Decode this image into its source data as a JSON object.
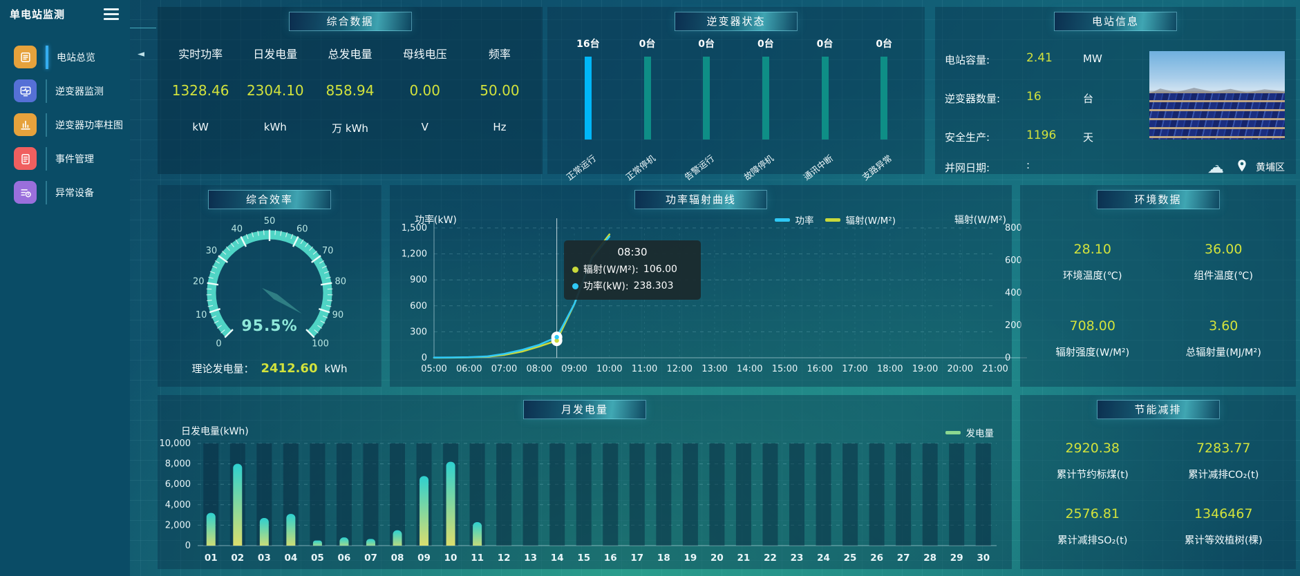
{
  "app": {
    "title": "单电站监测"
  },
  "sidebar": {
    "items": [
      {
        "label": "电站总览",
        "icon": "station-overview-icon",
        "icon_color": "#e6a23c",
        "active": true
      },
      {
        "label": "逆变器监测",
        "icon": "inverter-monitor-icon",
        "icon_color": "#5570d6",
        "active": false
      },
      {
        "label": "逆变器功率柱图",
        "icon": "inverter-power-bars-icon",
        "icon_color": "#e6a23c",
        "active": false
      },
      {
        "label": "事件管理",
        "icon": "event-management-icon",
        "icon_color": "#f05f5f",
        "active": false
      },
      {
        "label": "异常设备",
        "icon": "abnormal-device-icon",
        "icon_color": "#9a6fdc",
        "active": false
      }
    ]
  },
  "panels": {
    "summary": {
      "title": "综合数据",
      "metrics": [
        {
          "label": "实时功率",
          "value": "1328.46",
          "unit": "kW"
        },
        {
          "label": "日发电量",
          "value": "2304.10",
          "unit": "kWh"
        },
        {
          "label": "总发电量",
          "value": "858.94",
          "unit": "万  kWh"
        },
        {
          "label": "母线电压",
          "value": "0.00",
          "unit": "V"
        },
        {
          "label": "频率",
          "value": "50.00",
          "unit": "Hz"
        }
      ]
    },
    "inverter_status": {
      "title": "逆变器状态",
      "items": [
        {
          "count": "16台",
          "label": "正常运行",
          "highlight": true
        },
        {
          "count": "0台",
          "label": "正常停机",
          "highlight": false
        },
        {
          "count": "0台",
          "label": "告警运行",
          "highlight": false
        },
        {
          "count": "0台",
          "label": "故障停机",
          "highlight": false
        },
        {
          "count": "0台",
          "label": "通讯中断",
          "highlight": false
        },
        {
          "count": "0台",
          "label": "支路异常",
          "highlight": false
        }
      ]
    },
    "station_info": {
      "title": "电站信息",
      "rows": [
        {
          "label": "电站容量:",
          "value": "2.41",
          "unit": "MW"
        },
        {
          "label": "逆变器数量:",
          "value": "16",
          "unit": "台"
        },
        {
          "label": "安全生产:",
          "value": "1196",
          "unit": "天"
        },
        {
          "label": "并网日期:",
          "value": ":",
          "unit": ""
        }
      ],
      "weather_icon_mark": "?",
      "location": "黄埔区"
    },
    "efficiency": {
      "title": "综合效率",
      "gauge_label": "95.5%",
      "footer_label": "理论发电量：",
      "footer_value": "2412.60",
      "footer_unit": "kWh"
    },
    "power_radiation": {
      "title": "功率辐射曲线"
    },
    "environment": {
      "title": "环境数据",
      "metrics": [
        {
          "value": "28.10",
          "label": "环境温度(℃)"
        },
        {
          "value": "36.00",
          "label": "组件温度(℃)"
        },
        {
          "value": "708.00",
          "label": "辐射强度(W/M²)"
        },
        {
          "value": "3.60",
          "label": "总辐射量(MJ/M²)"
        }
      ]
    },
    "monthly_energy": {
      "title": "月发电量"
    },
    "saving": {
      "title": "节能减排",
      "metrics": [
        {
          "value": "2920.38",
          "label": "累计节约标煤(t)"
        },
        {
          "value": "7283.77",
          "label": "累计减排CO₂(t)"
        },
        {
          "value": "2576.81",
          "label": "累计减排SO₂(t)"
        },
        {
          "value": "1346467",
          "label": "累计等效植树(棵)"
        }
      ]
    }
  },
  "colors": {
    "value_accent": "#d2e23c",
    "inverter_bar_active": "#00b7f8",
    "inverter_bar_idle": "#0e8e86",
    "power_line": "#2fc8f5",
    "radiation_line": "#c9d93b",
    "gauge_ring": "#4fd4c5",
    "energy_bar_top": "#2ed0cf",
    "energy_bar_bottom": "#e6df67",
    "energy_legend": "#8cd790"
  },
  "chart_data": [
    {
      "id": "power_radiation_curve",
      "type": "line",
      "title": "功率辐射曲线",
      "ylabel_left": "功率(kW)",
      "ylabel_right": "辐射(W/M²)",
      "legend": [
        {
          "name": "功率",
          "color": "#2fc8f5"
        },
        {
          "name": "辐射(W/M²)",
          "color": "#c9d93b"
        }
      ],
      "x_ticks": [
        "05:00",
        "06:00",
        "07:00",
        "08:00",
        "09:00",
        "10:00",
        "11:00",
        "12:00",
        "13:00",
        "14:00",
        "15:00",
        "16:00",
        "17:00",
        "18:00",
        "19:00",
        "20:00",
        "21:00"
      ],
      "ylim_left": [
        0,
        1500
      ],
      "yticks_left": [
        "0",
        "300",
        "600",
        "900",
        "1,200",
        "1,500"
      ],
      "ylim_right": [
        0,
        800
      ],
      "yticks_right": [
        "0",
        "200",
        "400",
        "600",
        "800"
      ],
      "series": [
        {
          "name": "功率",
          "axis": "left",
          "color": "#2fc8f5",
          "x": [
            "05:00",
            "05:30",
            "06:00",
            "06:30",
            "07:00",
            "07:30",
            "08:00",
            "08:30",
            "09:00",
            "09:30",
            "10:00"
          ],
          "y": [
            2,
            3,
            6,
            15,
            45,
            90,
            150,
            238.303,
            620,
            1150,
            1400
          ]
        },
        {
          "name": "辐射(W/M²)",
          "axis": "right",
          "color": "#c9d93b",
          "x": [
            "05:00",
            "05:30",
            "06:00",
            "06:30",
            "07:00",
            "07:30",
            "08:00",
            "08:30",
            "09:00",
            "09:30",
            "10:00"
          ],
          "y": [
            0,
            1,
            2,
            6,
            18,
            38,
            70,
            106,
            330,
            620,
            760
          ]
        }
      ],
      "tooltip": {
        "time": "08:30",
        "rows": [
          {
            "name": "辐射(W/M²):",
            "value": "106.00",
            "color": "#c9d93b"
          },
          {
            "name": "功率(kW):",
            "value": "238.303",
            "color": "#2fc8f5"
          }
        ]
      }
    },
    {
      "id": "monthly_energy",
      "type": "bar",
      "title": "月发电量",
      "ylabel": "日发电量(kWh)",
      "legend": "发电量",
      "legend_color": "#8cd790",
      "categories": [
        "01",
        "02",
        "03",
        "04",
        "05",
        "06",
        "07",
        "08",
        "09",
        "10",
        "11",
        "12",
        "13",
        "14",
        "15",
        "16",
        "17",
        "18",
        "19",
        "20",
        "21",
        "22",
        "23",
        "24",
        "25",
        "26",
        "27",
        "28",
        "29",
        "30"
      ],
      "values": [
        3200,
        8000,
        2700,
        3100,
        500,
        800,
        650,
        1500,
        6800,
        8200,
        2300,
        0,
        0,
        0,
        0,
        0,
        0,
        0,
        0,
        0,
        0,
        0,
        0,
        0,
        0,
        0,
        0,
        0,
        0,
        0
      ],
      "ylim": [
        0,
        10000
      ],
      "yticks": [
        "0",
        "2,000",
        "4,000",
        "6,000",
        "8,000",
        "10,000"
      ],
      "bar_color_top": "#2ed0cf",
      "bar_color_bottom": "#e6df67"
    },
    {
      "id": "efficiency_gauge",
      "type": "gauge",
      "value": 95.5,
      "min": 0,
      "max": 100,
      "ticks": [
        0,
        10,
        20,
        30,
        40,
        50,
        60,
        70,
        80,
        90,
        100
      ],
      "ring_color": "#4fd4c5"
    },
    {
      "id": "inverter_status_bars",
      "type": "bar",
      "categories": [
        "正常运行",
        "正常停机",
        "告警运行",
        "故障停机",
        "通讯中断",
        "支路异常"
      ],
      "values": [
        16,
        0,
        0,
        0,
        0,
        0
      ]
    }
  ]
}
